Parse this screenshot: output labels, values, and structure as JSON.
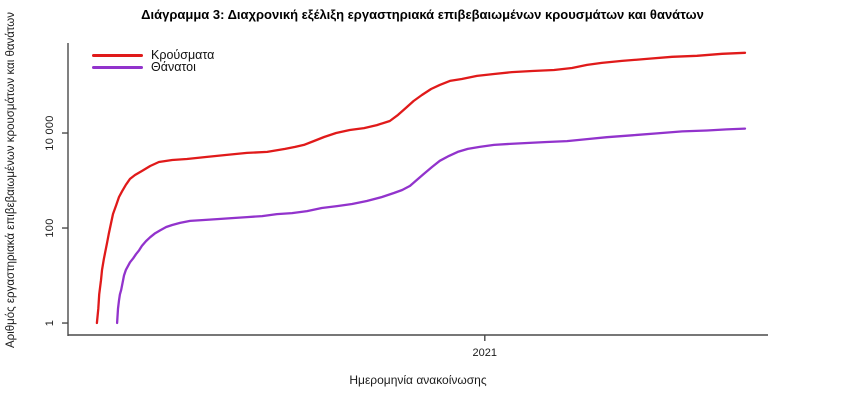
{
  "title": "Διάγραμμα 3: Διαχρονική εξέλιξη εργαστηριακά επιβεβαιωμένων κρουσμάτων και θανάτων",
  "colors": {
    "cases": "#e01a1a",
    "deaths": "#9233cc",
    "axis": "#4a4a4a",
    "text": "#1a1a1a"
  },
  "legend": {
    "items": [
      {
        "label": "Κρούσματα",
        "color_key": "cases"
      },
      {
        "label": "Θάνατοι",
        "color_key": "deaths"
      }
    ]
  },
  "x_axis": {
    "label": "Ημερομηνία ανακοίνωσης",
    "ticks": [
      {
        "t": 2021.0,
        "label": "2021"
      }
    ]
  },
  "y_axis": {
    "label": "Αριθμός εργαστηριακά επιβεβαιωμένων κρουσμάτων και θανάτων",
    "scale": "log",
    "ticks": [
      {
        "v": 1,
        "label": "1"
      },
      {
        "v": 100,
        "label": "100"
      },
      {
        "v": 10000,
        "label": "10 000"
      }
    ]
  },
  "chart_data": {
    "type": "line",
    "title": "Διάγραμμα 3: Διαχρονική εξέλιξη εργαστηριακά επιβεβαιωμένων κρουσμάτων και θανάτων",
    "xlabel": "Ημερομηνία ανακοίνωσης",
    "ylabel": "Αριθμός εργαστηριακά επιβεβαιωμένων κρουσμάτων και θανάτων",
    "x_unit": "decimal_year",
    "y_scale": "log",
    "x_range": [
      2020.092,
      2021.617
    ],
    "y_range": [
      0.56,
      785000
    ],
    "grid": false,
    "legend_position": "top-left",
    "series": [
      {
        "name": "Κρούσματα",
        "color_key": "cases",
        "points": [
          [
            2020.155,
            1
          ],
          [
            2020.158,
            2
          ],
          [
            2020.16,
            4
          ],
          [
            2020.164,
            8
          ],
          [
            2020.166,
            13
          ],
          [
            2020.17,
            22
          ],
          [
            2020.173,
            31
          ],
          [
            2020.177,
            48
          ],
          [
            2020.181,
            78
          ],
          [
            2020.186,
            128
          ],
          [
            2020.19,
            197
          ],
          [
            2020.197,
            304
          ],
          [
            2020.203,
            450
          ],
          [
            2020.21,
            600
          ],
          [
            2020.218,
            807
          ],
          [
            2020.227,
            1080
          ],
          [
            2020.238,
            1310
          ],
          [
            2020.253,
            1590
          ],
          [
            2020.271,
            2020
          ],
          [
            2020.29,
            2460
          ],
          [
            2020.319,
            2710
          ],
          [
            2020.351,
            2840
          ],
          [
            2020.395,
            3140
          ],
          [
            2020.438,
            3460
          ],
          [
            2020.482,
            3810
          ],
          [
            2020.526,
            4000
          ],
          [
            2020.565,
            4630
          ],
          [
            2020.587,
            5100
          ],
          [
            2020.606,
            5620
          ],
          [
            2020.628,
            6800
          ],
          [
            2020.65,
            8250
          ],
          [
            2020.676,
            10000
          ],
          [
            2020.706,
            11600
          ],
          [
            2020.737,
            12700
          ],
          [
            2020.765,
            14700
          ],
          [
            2020.793,
            17900
          ],
          [
            2020.811,
            24100
          ],
          [
            2020.828,
            33700
          ],
          [
            2020.845,
            47300
          ],
          [
            2020.863,
            63200
          ],
          [
            2020.883,
            84500
          ],
          [
            2020.902,
            103000
          ],
          [
            2020.924,
            125000
          ],
          [
            2020.95,
            137000
          ],
          [
            2020.983,
            159000
          ],
          [
            2021.02,
            175000
          ],
          [
            2021.059,
            192000
          ],
          [
            2021.103,
            202000
          ],
          [
            2021.151,
            212000
          ],
          [
            2021.19,
            234000
          ],
          [
            2021.223,
            271000
          ],
          [
            2021.255,
            299000
          ],
          [
            2021.299,
            330000
          ],
          [
            2021.353,
            364000
          ],
          [
            2021.408,
            402000
          ],
          [
            2021.462,
            422000
          ],
          [
            2021.517,
            466000
          ],
          [
            2021.567,
            489000
          ]
        ]
      },
      {
        "name": "Θάνατοι",
        "color_key": "deaths",
        "points": [
          [
            2020.199,
            1
          ],
          [
            2020.201,
            2
          ],
          [
            2020.203,
            3
          ],
          [
            2020.205,
            4
          ],
          [
            2020.208,
            5
          ],
          [
            2020.212,
            8
          ],
          [
            2020.214,
            10
          ],
          [
            2020.218,
            13
          ],
          [
            2020.223,
            16
          ],
          [
            2020.227,
            19
          ],
          [
            2020.234,
            23
          ],
          [
            2020.24,
            28
          ],
          [
            2020.247,
            34
          ],
          [
            2020.253,
            42
          ],
          [
            2020.262,
            53
          ],
          [
            2020.271,
            64
          ],
          [
            2020.282,
            78
          ],
          [
            2020.293,
            90
          ],
          [
            2020.306,
            105
          ],
          [
            2020.319,
            116
          ],
          [
            2020.336,
            128
          ],
          [
            2020.358,
            141
          ],
          [
            2020.384,
            147
          ],
          [
            2020.417,
            154
          ],
          [
            2020.449,
            162
          ],
          [
            2020.482,
            170
          ],
          [
            2020.515,
            178
          ],
          [
            2020.547,
            196
          ],
          [
            2020.58,
            206
          ],
          [
            2020.613,
            227
          ],
          [
            2020.645,
            264
          ],
          [
            2020.678,
            290
          ],
          [
            2020.711,
            320
          ],
          [
            2020.743,
            371
          ],
          [
            2020.776,
            450
          ],
          [
            2020.802,
            546
          ],
          [
            2020.82,
            632
          ],
          [
            2020.837,
            771
          ],
          [
            2020.852,
            1030
          ],
          [
            2020.867,
            1370
          ],
          [
            2020.885,
            1930
          ],
          [
            2020.902,
            2600
          ],
          [
            2020.922,
            3300
          ],
          [
            2020.941,
            4000
          ],
          [
            2020.963,
            4630
          ],
          [
            2020.989,
            5100
          ],
          [
            2021.02,
            5620
          ],
          [
            2021.055,
            5890
          ],
          [
            2021.092,
            6170
          ],
          [
            2021.135,
            6460
          ],
          [
            2021.179,
            6770
          ],
          [
            2021.223,
            7430
          ],
          [
            2021.266,
            8150
          ],
          [
            2021.321,
            8950
          ],
          [
            2021.375,
            9820
          ],
          [
            2021.43,
            10800
          ],
          [
            2021.484,
            11300
          ],
          [
            2021.527,
            11900
          ],
          [
            2021.567,
            12400
          ]
        ]
      }
    ]
  }
}
